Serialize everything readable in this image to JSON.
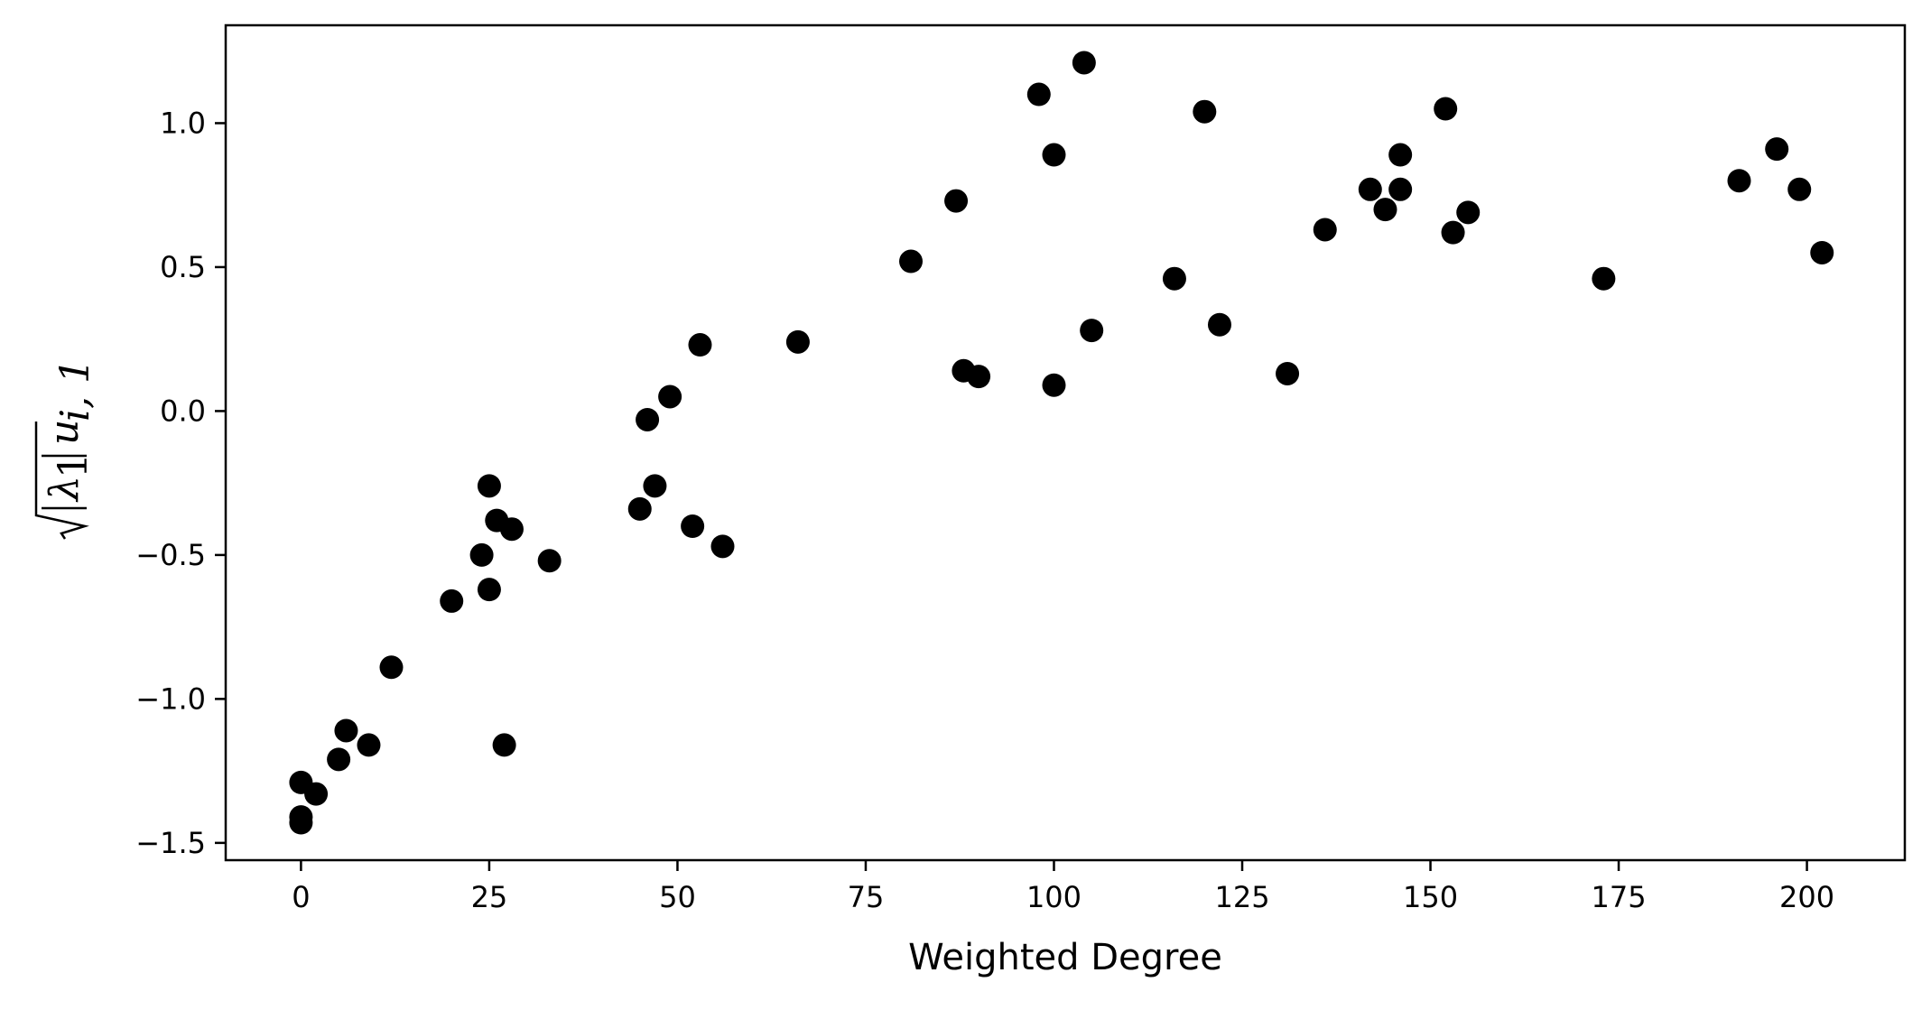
{
  "chart_data": {
    "type": "scatter",
    "xlabel": "Weighted Degree",
    "ylabel_parts": {
      "lambda": "λ",
      "one": "1",
      "u": "u",
      "subscript": "i, 1"
    },
    "xlim": [
      -10,
      213
    ],
    "ylim": [
      -1.56,
      1.34
    ],
    "xticks": [
      0,
      25,
      50,
      75,
      100,
      125,
      150,
      175,
      200
    ],
    "xtick_labels": [
      "0",
      "25",
      "50",
      "75",
      "100",
      "125",
      "150",
      "175",
      "200"
    ],
    "yticks": [
      -1.5,
      -1.0,
      -0.5,
      0.0,
      0.5,
      1.0
    ],
    "ytick_labels": [
      "−1.5",
      "−1.0",
      "−0.5",
      "0.0",
      "0.5",
      "1.0"
    ],
    "grid": false,
    "marker_color": "#000000",
    "points": [
      {
        "x": 0,
        "y": -1.29
      },
      {
        "x": 0,
        "y": -1.41
      },
      {
        "x": 0,
        "y": -1.43
      },
      {
        "x": 2,
        "y": -1.33
      },
      {
        "x": 5,
        "y": -1.21
      },
      {
        "x": 6,
        "y": -1.11
      },
      {
        "x": 9,
        "y": -1.16
      },
      {
        "x": 12,
        "y": -0.89
      },
      {
        "x": 20,
        "y": -0.66
      },
      {
        "x": 24,
        "y": -0.5
      },
      {
        "x": 25,
        "y": -0.62
      },
      {
        "x": 25,
        "y": -0.26
      },
      {
        "x": 26,
        "y": -0.38
      },
      {
        "x": 27,
        "y": -1.16
      },
      {
        "x": 28,
        "y": -0.41
      },
      {
        "x": 33,
        "y": -0.52
      },
      {
        "x": 45,
        "y": -0.34
      },
      {
        "x": 46,
        "y": -0.03
      },
      {
        "x": 47,
        "y": -0.26
      },
      {
        "x": 49,
        "y": 0.05
      },
      {
        "x": 52,
        "y": -0.4
      },
      {
        "x": 53,
        "y": 0.23
      },
      {
        "x": 56,
        "y": -0.47
      },
      {
        "x": 66,
        "y": 0.24
      },
      {
        "x": 81,
        "y": 0.52
      },
      {
        "x": 87,
        "y": 0.73
      },
      {
        "x": 88,
        "y": 0.14
      },
      {
        "x": 90,
        "y": 0.12
      },
      {
        "x": 98,
        "y": 1.1
      },
      {
        "x": 100,
        "y": 0.89
      },
      {
        "x": 100,
        "y": 0.09
      },
      {
        "x": 104,
        "y": 1.21
      },
      {
        "x": 105,
        "y": 0.28
      },
      {
        "x": 116,
        "y": 0.46
      },
      {
        "x": 120,
        "y": 1.04
      },
      {
        "x": 122,
        "y": 0.3
      },
      {
        "x": 131,
        "y": 0.13
      },
      {
        "x": 136,
        "y": 0.63
      },
      {
        "x": 142,
        "y": 0.77
      },
      {
        "x": 144,
        "y": 0.7
      },
      {
        "x": 146,
        "y": 0.89
      },
      {
        "x": 146,
        "y": 0.77
      },
      {
        "x": 152,
        "y": 1.05
      },
      {
        "x": 153,
        "y": 0.62
      },
      {
        "x": 155,
        "y": 0.69
      },
      {
        "x": 173,
        "y": 0.46
      },
      {
        "x": 191,
        "y": 0.8
      },
      {
        "x": 196,
        "y": 0.91
      },
      {
        "x": 199,
        "y": 0.77
      },
      {
        "x": 202,
        "y": 0.55
      }
    ]
  }
}
